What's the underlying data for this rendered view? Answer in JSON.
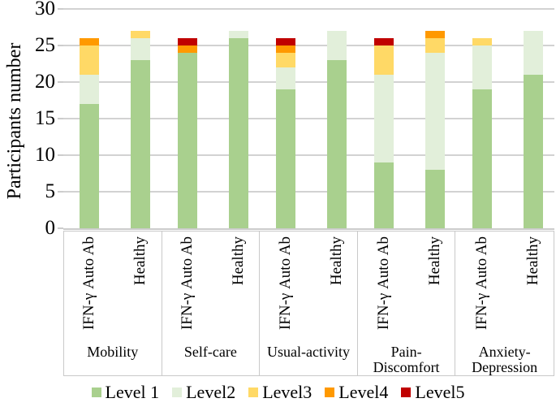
{
  "chart_data": {
    "type": "bar",
    "stacked": true,
    "title": "",
    "xlabel": "",
    "ylabel": "Participants number",
    "ylim": [
      0,
      30
    ],
    "yticks": [
      0,
      5,
      10,
      15,
      20,
      25,
      30
    ],
    "grid": true,
    "legend_position": "bottom",
    "groups": [
      "Mobility",
      "Self-care",
      "Usual-activity",
      "Pain-\nDiscomfort",
      "Anxiety-\nDepression"
    ],
    "subgroups": [
      "IFN-γ Auto Ab",
      "Healthy"
    ],
    "bar_totals": [
      26,
      27,
      26,
      27,
      26,
      27,
      26,
      27,
      26,
      27
    ],
    "series": [
      {
        "name": "Level 1",
        "color": "#A9D08E",
        "values": [
          17,
          23,
          24,
          26,
          19,
          23,
          9,
          8,
          19,
          21
        ]
      },
      {
        "name": "Level2",
        "color": "#E2EFDA",
        "values": [
          4,
          3,
          0,
          1,
          3,
          4,
          12,
          16,
          6,
          6
        ]
      },
      {
        "name": "Level3",
        "color": "#FFD966",
        "values": [
          4,
          1,
          0,
          0,
          2,
          0,
          4,
          2,
          1,
          0
        ]
      },
      {
        "name": "Level4",
        "color": "#FF9900",
        "values": [
          1,
          0,
          1,
          0,
          1,
          0,
          0,
          1,
          0,
          0
        ]
      },
      {
        "name": "Level5",
        "color": "#C00000",
        "values": [
          0,
          0,
          1,
          0,
          1,
          0,
          1,
          0,
          0,
          0
        ]
      }
    ],
    "colors": {
      "gridline": "#D2D2D2",
      "axis_border": "#C9C9C9"
    }
  }
}
